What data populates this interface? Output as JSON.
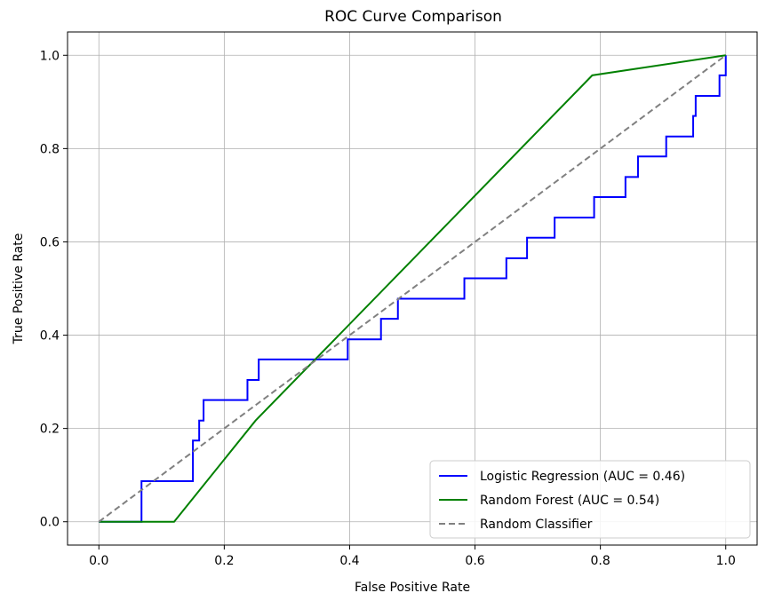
{
  "chart_data": {
    "type": "line",
    "title": "ROC Curve Comparison",
    "xlabel": "False Positive Rate",
    "ylabel": "True Positive Rate",
    "xlim": [
      -0.05,
      1.05
    ],
    "ylim": [
      -0.05,
      1.05
    ],
    "xticks": [
      "0.0",
      "0.2",
      "0.4",
      "0.6",
      "0.8",
      "1.0"
    ],
    "yticks": [
      "0.0",
      "0.2",
      "0.4",
      "0.6",
      "0.8",
      "1.0"
    ],
    "grid": true,
    "legend_position": "lower right",
    "series": [
      {
        "name": "Logistic Regression (AUC = 0.46)",
        "color": "#0000ff",
        "style": "solid",
        "x": [
          0,
          0.068,
          0.068,
          0.15,
          0.15,
          0.16,
          0.16,
          0.167,
          0.167,
          0.237,
          0.237,
          0.255,
          0.255,
          0.397,
          0.397,
          0.45,
          0.45,
          0.477,
          0.477,
          0.583,
          0.583,
          0.65,
          0.65,
          0.683,
          0.683,
          0.727,
          0.727,
          0.79,
          0.79,
          0.84,
          0.84,
          0.86,
          0.86,
          0.905,
          0.905,
          0.948,
          0.948,
          0.952,
          0.952,
          0.99,
          0.99,
          1.0,
          1.0
        ],
        "y": [
          0,
          0,
          0.087,
          0.087,
          0.174,
          0.174,
          0.217,
          0.217,
          0.261,
          0.261,
          0.304,
          0.304,
          0.348,
          0.348,
          0.391,
          0.391,
          0.435,
          0.435,
          0.478,
          0.478,
          0.522,
          0.522,
          0.565,
          0.565,
          0.609,
          0.609,
          0.652,
          0.652,
          0.696,
          0.696,
          0.739,
          0.739,
          0.783,
          0.783,
          0.826,
          0.826,
          0.87,
          0.87,
          0.913,
          0.913,
          0.957,
          0.957,
          1.0
        ]
      },
      {
        "name": "Random Forest (AUC = 0.54)",
        "color": "#008000",
        "style": "solid",
        "x": [
          0,
          0.12,
          0.25,
          0.787,
          1.0
        ],
        "y": [
          0,
          0,
          0.217,
          0.957,
          1.0
        ]
      },
      {
        "name": "Random Classifier",
        "color": "#808080",
        "style": "dashed",
        "x": [
          0,
          1
        ],
        "y": [
          0,
          1
        ]
      }
    ]
  }
}
